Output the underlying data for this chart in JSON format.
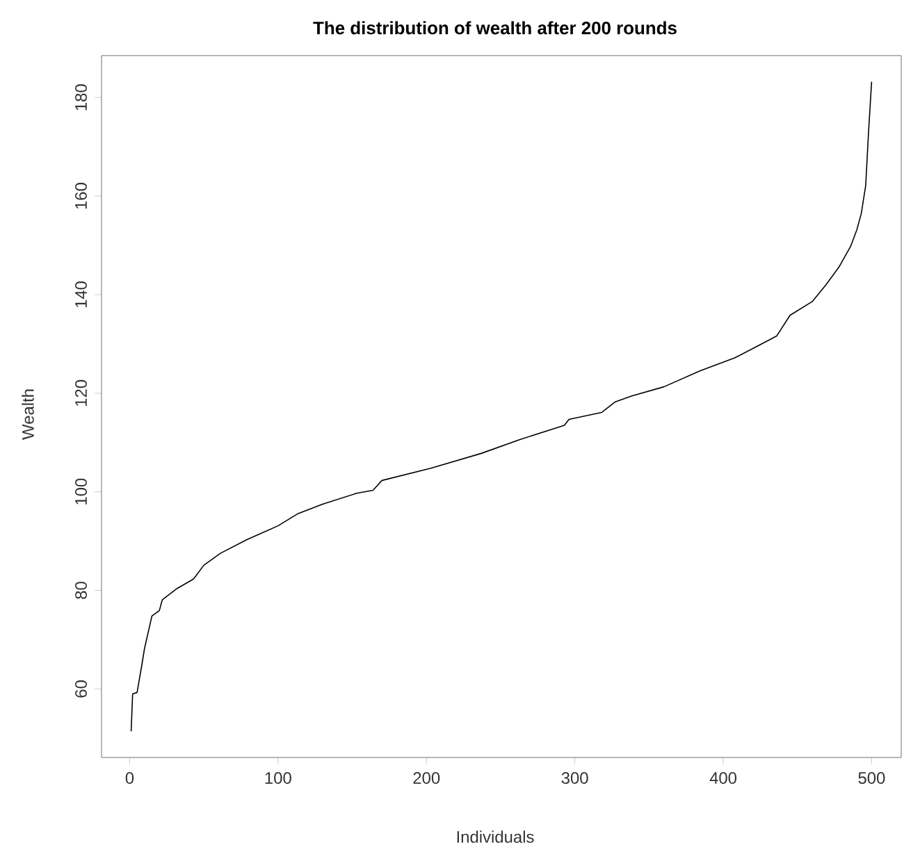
{
  "chart_data": {
    "type": "line",
    "title": "The distribution of wealth after 200 rounds",
    "xlabel": "Individuals",
    "ylabel": "Wealth",
    "xlim": [
      -18.96,
      519.96
    ],
    "ylim": [
      46.1,
      188.5
    ],
    "xticks": [
      0,
      100,
      200,
      300,
      400,
      500
    ],
    "yticks": [
      60,
      80,
      100,
      120,
      140,
      160,
      180
    ],
    "marker": "none",
    "line_style": "solid",
    "series": [
      {
        "color": "#000000",
        "x": [
          1,
          2,
          5,
          8,
          10,
          15,
          20,
          22,
          32,
          43,
          50,
          61,
          79,
          100,
          113,
          130,
          153,
          164,
          170,
          203,
          237,
          263,
          293,
          296,
          318,
          327,
          338,
          360,
          384,
          408,
          424,
          436,
          445,
          460,
          469,
          478,
          486,
          490,
          493,
          496,
          498,
          500
        ],
        "values": [
          51.4,
          59,
          59.3,
          64.5,
          68.2,
          74.8,
          75.9,
          78.1,
          80.4,
          82.3,
          85.1,
          87.5,
          90.3,
          93.1,
          95.5,
          97.5,
          99.7,
          100.3,
          102.3,
          104.8,
          107.8,
          110.6,
          113.5,
          114.7,
          116.1,
          118.2,
          119.4,
          121.3,
          124.5,
          127.2,
          129.7,
          131.6,
          135.8,
          138.6,
          141.9,
          145.6,
          149.9,
          153.1,
          156.4,
          162.1,
          173.3,
          183.2
        ]
      }
    ]
  }
}
